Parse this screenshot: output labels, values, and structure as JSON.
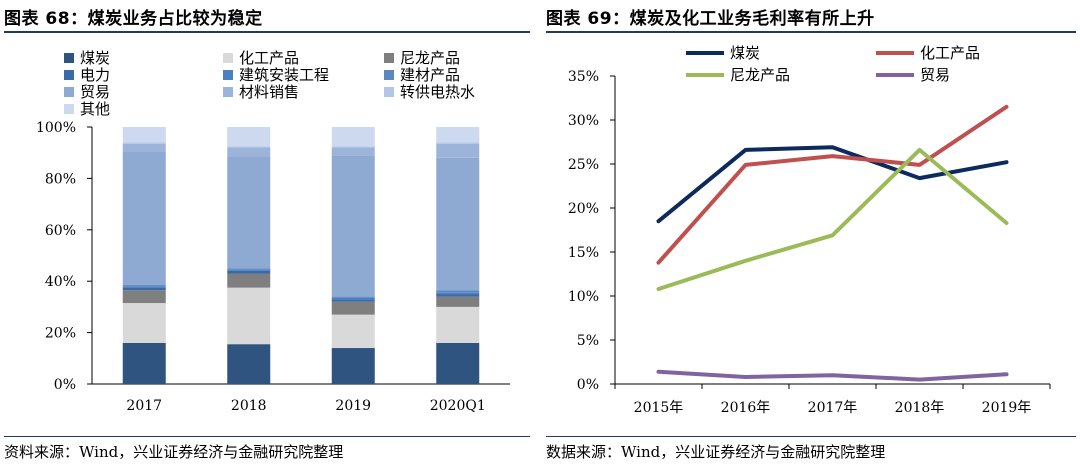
{
  "left": {
    "title": "图表 68：煤炭业务占比较为稳定",
    "source": "资料来源：Wind，兴业证券经济与金融研究院整理"
  },
  "right": {
    "title": "图表 69：煤炭及化工业务毛利率有所上升",
    "source": "数据来源：Wind，兴业证券经济与金融研究院整理"
  },
  "chart_data": [
    {
      "type": "bar",
      "stacked": true,
      "categories": [
        "2017",
        "2018",
        "2019",
        "2020Q1"
      ],
      "y_tick_labels": [
        "0%",
        "20%",
        "40%",
        "60%",
        "80%",
        "100%"
      ],
      "ylim": [
        0,
        100
      ],
      "series": [
        {
          "name": "煤炭",
          "color": "#2f5480",
          "values": [
            16,
            15.5,
            14,
            16
          ]
        },
        {
          "name": "化工产品",
          "color": "#d9d9d9",
          "values": [
            15.5,
            22,
            13,
            14
          ]
        },
        {
          "name": "尼龙产品",
          "color": "#7f7f7f",
          "values": [
            5,
            5.5,
            5,
            4
          ]
        },
        {
          "name": "电力",
          "color": "#3b6aa6",
          "values": [
            1,
            1,
            1,
            1
          ]
        },
        {
          "name": "建筑安装工程",
          "color": "#4a7fc1",
          "values": [
            0.5,
            0.5,
            0.5,
            0.5
          ]
        },
        {
          "name": "建材产品",
          "color": "#5c87bf",
          "values": [
            0.5,
            0.5,
            0.5,
            1
          ]
        },
        {
          "name": "贸易",
          "color": "#8ea9d2",
          "values": [
            52,
            43.5,
            55,
            51.5
          ]
        },
        {
          "name": "材料销售",
          "color": "#9db4da",
          "values": [
            3,
            3.5,
            3,
            5.5
          ]
        },
        {
          "name": "转供电热水",
          "color": "#b4c6e7",
          "values": [
            0.5,
            0.5,
            0.5,
            0.5
          ]
        },
        {
          "name": "其他",
          "color": "#ccd9ee",
          "values": [
            6,
            7.5,
            7.5,
            6
          ]
        }
      ]
    },
    {
      "type": "line",
      "categories": [
        "2015年",
        "2016年",
        "2017年",
        "2018年",
        "2019年"
      ],
      "y_tick_labels": [
        "0%",
        "5%",
        "10%",
        "15%",
        "20%",
        "25%",
        "30%",
        "35%"
      ],
      "ylim": [
        0,
        35
      ],
      "series": [
        {
          "name": "煤炭",
          "color": "#0d2a5e",
          "values": [
            18.5,
            26.6,
            26.9,
            23.4,
            25.2
          ]
        },
        {
          "name": "化工产品",
          "color": "#c0504d",
          "values": [
            13.8,
            24.9,
            25.9,
            24.9,
            31.5
          ]
        },
        {
          "name": "尼龙产品",
          "color": "#9bbb59",
          "values": [
            10.8,
            14.0,
            16.9,
            26.6,
            18.3
          ]
        },
        {
          "name": "贸易",
          "color": "#8064a2",
          "values": [
            1.4,
            0.8,
            1.0,
            0.5,
            1.1
          ]
        }
      ]
    }
  ]
}
